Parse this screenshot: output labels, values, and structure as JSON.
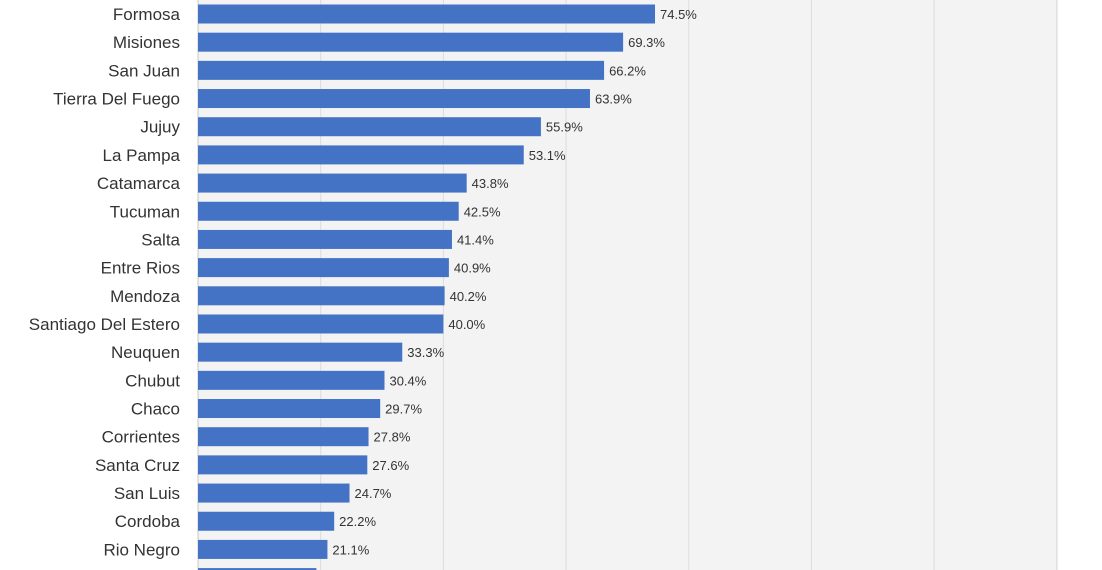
{
  "chart_data": {
    "type": "bar",
    "orientation": "horizontal",
    "categories": [
      "Formosa",
      "Misiones",
      "San Juan",
      "Tierra Del Fuego",
      "Jujuy",
      "La Pampa",
      "Catamarca",
      "Tucuman",
      "Salta",
      "Entre Rios",
      "Mendoza",
      "Santiago Del Estero",
      "Neuquen",
      "Chubut",
      "Chaco",
      "Corrientes",
      "Santa Cruz",
      "San Luis",
      "Cordoba",
      "Rio Negro"
    ],
    "values": [
      74.5,
      69.3,
      66.2,
      63.9,
      55.9,
      53.1,
      43.8,
      42.5,
      41.4,
      40.9,
      40.2,
      40.0,
      33.3,
      30.4,
      29.7,
      27.8,
      27.6,
      24.7,
      22.2,
      21.1
    ],
    "data_labels": [
      "74.5%",
      "69.3%",
      "66.2%",
      "63.9%",
      "55.9%",
      "53.1%",
      "43.8%",
      "42.5%",
      "41.4%",
      "40.9%",
      "40.2%",
      "40.0%",
      "33.3%",
      "30.4%",
      "29.7%",
      "27.8%",
      "27.6%",
      "24.7%",
      "22.2%",
      "21.1%"
    ],
    "partial_bottom_value": 19.3,
    "xlim": [
      0,
      140
    ],
    "grid": true,
    "colors": {
      "bar": "#4472c4",
      "plot_background": "#f3f3f3",
      "gridline": "#dcdcdc",
      "text": "#333333"
    }
  }
}
